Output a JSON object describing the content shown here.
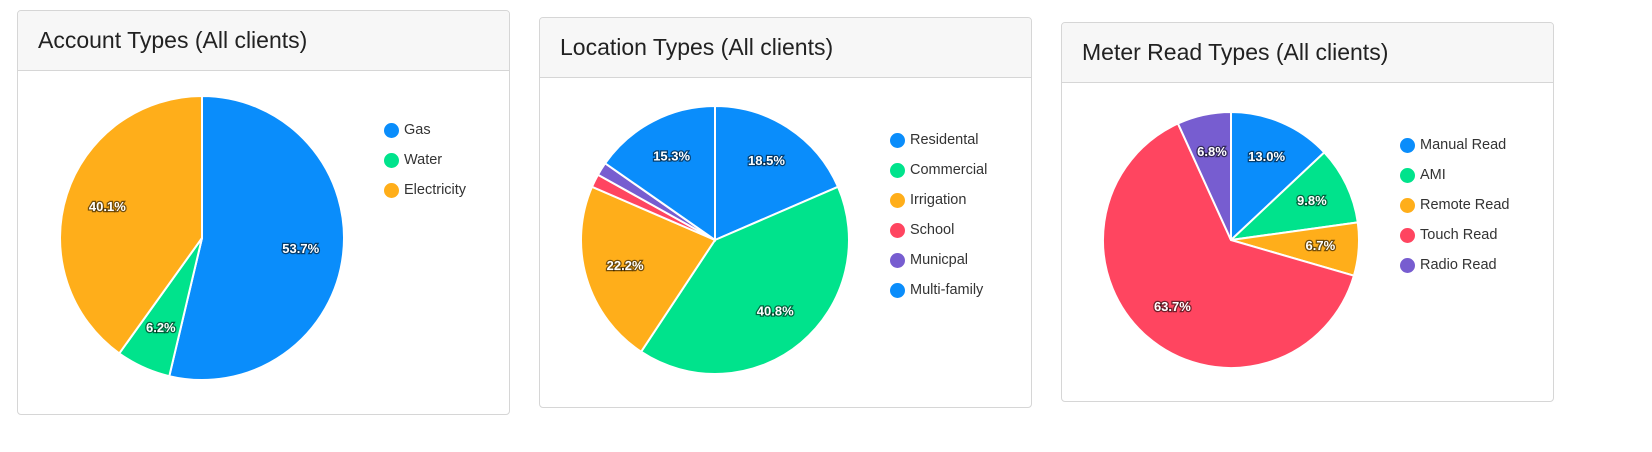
{
  "colors": {
    "blue": "#0a8dfb",
    "green": "#00e38c",
    "orange": "#ffae1a",
    "red": "#ff4560",
    "purple": "#775dd0"
  },
  "chart_data": [
    {
      "type": "pie",
      "title": "Account Types (All clients)",
      "categories": [
        "Gas",
        "Water",
        "Electricity"
      ],
      "values": [
        53.7,
        6.2,
        40.1
      ],
      "labels": [
        "53.7%",
        "6.2%",
        "40.1%"
      ],
      "colors": [
        "#0a8dfb",
        "#00e38c",
        "#ffae1a"
      ],
      "legend": "right"
    },
    {
      "type": "pie",
      "title": "Location Types (All clients)",
      "categories": [
        "Residental",
        "Commercial",
        "Irrigation",
        "School",
        "Municpal",
        "Multi-family"
      ],
      "values": [
        18.5,
        40.8,
        22.2,
        1.6,
        1.6,
        15.3
      ],
      "labels": [
        "18.5%",
        "40.8%",
        "22.2%",
        "",
        "",
        "15.3%"
      ],
      "colors": [
        "#0a8dfb",
        "#00e38c",
        "#ffae1a",
        "#ff4560",
        "#775dd0",
        "#0a8dfb"
      ],
      "legend": "right"
    },
    {
      "type": "pie",
      "title": "Meter Read Types (All clients)",
      "categories": [
        "Manual Read",
        "AMI",
        "Remote Read",
        "Touch Read",
        "Radio Read"
      ],
      "values": [
        13.0,
        9.8,
        6.7,
        63.7,
        6.8
      ],
      "labels": [
        "13.0%",
        "9.8%",
        "6.7%",
        "63.7%",
        "6.8%"
      ],
      "colors": [
        "#0a8dfb",
        "#00e38c",
        "#ffae1a",
        "#ff4560",
        "#775dd0"
      ],
      "legend": "right"
    }
  ]
}
